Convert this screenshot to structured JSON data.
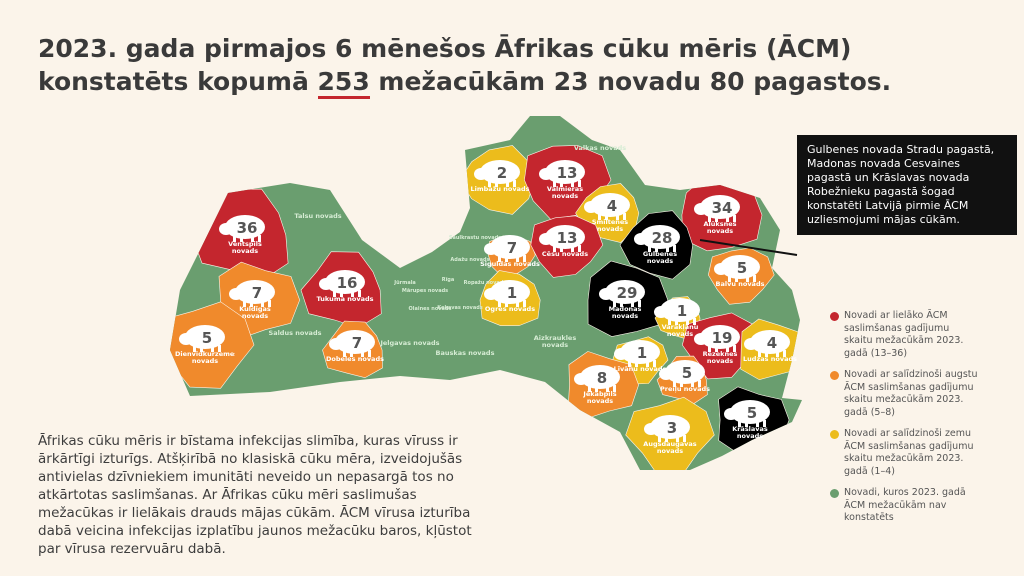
{
  "title": {
    "line1": [
      "2023. gada pirmajos 6 mēnešos ",
      "Āfrikas cūku mēris",
      " (ĀCM)"
    ],
    "line2": [
      "konstatēts kopumā ",
      "253",
      " mežacūkām 23 novadu 80 pagastos."
    ]
  },
  "description": "Āfrikas cūku mēris ir bīstama infekcijas slimība, kuras vīruss ir ārkārtīgi izturīgs. Atšķirībā no klasiskā cūku mēra, izveidojušās antivielas dzīvniekiem imunitāti neveido un nepasargā tos no atkārtotas saslimšanas. Ar Āfrikas cūku mēri saslimušas mežacūkas ir lielākais drauds mājas cūkām. ĀCM vīrusa izturība dabā veicina infekcijas izplatību jaunos mežacūku baros, kļūstot par vīrusa rezervuāru dabā.",
  "callout": "Gulbenes novada Stradu pagastā, Madonas novada Cesvaines pagastā un Krāslavas novada Robežnieku pagastā šogad konstatēti Latvijā pirmie ĀCM uzliesmojumi mājas cūkām.",
  "legend": [
    {
      "label": "Novadi ar lielāko ĀCM saslimšanas gadījumu skaitu mežacūkām 2023. gadā (13–36)",
      "color": "#c4262e"
    },
    {
      "label": "Novadi ar salīdzinoši augstu ĀCM saslimšanas gadījumu skaitu mežacūkām 2023. gadā (5–8)",
      "color": "#f08a2c"
    },
    {
      "label": "Novadi ar salīdzinoši zemu ĀCM saslimšanas gadījumu skaitu mežacūkām 2023. gadā (1–4)",
      "color": "#ecbc1c"
    },
    {
      "label": "Novadi, kuros 2023. gadā ĀCM mežacūkām nav konstatēts",
      "color": "#6a9e6f"
    }
  ],
  "regions": [
    {
      "name": "Ventspils novads",
      "count": 36,
      "color": "#c4262e"
    },
    {
      "name": "Talsu novads",
      "color": "#6a9e6f"
    },
    {
      "name": "Kuldīgas novads",
      "count": 7,
      "color": "#f08a2c"
    },
    {
      "name": "Tukuma novads",
      "count": 16,
      "color": "#c4262e"
    },
    {
      "name": "Dienvidkurzemes novads",
      "count": 5,
      "color": "#f08a2c"
    },
    {
      "name": "Saldus novads",
      "color": "#6a9e6f"
    },
    {
      "name": "Dobeles novads",
      "count": 7,
      "color": "#f08a2c"
    },
    {
      "name": "Jelgavas novads",
      "color": "#6a9e6f"
    },
    {
      "name": "Bauskas novads",
      "color": "#6a9e6f"
    },
    {
      "name": "Jūrmala",
      "color": "#6a9e6f"
    },
    {
      "name": "Mārupes novads",
      "color": "#6a9e6f"
    },
    {
      "name": "Olaines novads",
      "color": "#6a9e6f"
    },
    {
      "name": "Ķekavas novads",
      "color": "#6a9e6f"
    },
    {
      "name": "Rīga",
      "color": "#6a9e6f"
    },
    {
      "name": "Ropažu novads",
      "color": "#6a9e6f"
    },
    {
      "name": "Ādažu novads",
      "color": "#6a9e6f"
    },
    {
      "name": "Saulkrastu novads",
      "color": "#6a9e6f"
    },
    {
      "name": "Siguldas novads",
      "count": 7,
      "color": "#f08a2c"
    },
    {
      "name": "Ogres novads",
      "count": 1,
      "color": "#ecbc1c"
    },
    {
      "name": "Limbažu novads",
      "count": 2,
      "color": "#ecbc1c"
    },
    {
      "name": "Valmieras novads",
      "count": 13,
      "color": "#c4262e"
    },
    {
      "name": "Valkas novads",
      "color": "#6a9e6f"
    },
    {
      "name": "Smiltenes novads",
      "count": 4,
      "color": "#ecbc1c"
    },
    {
      "name": "Cēsu novads",
      "count": 13,
      "color": "#c4262e"
    },
    {
      "name": "Alūksnes novads",
      "count": 34,
      "color": "#c4262e"
    },
    {
      "name": "Gulbenes novads",
      "count": 28,
      "color": "#000000"
    },
    {
      "name": "Balvu novads",
      "count": 5,
      "color": "#f08a2c"
    },
    {
      "name": "Madonas novads",
      "count": 29,
      "color": "#000000"
    },
    {
      "name": "Varakļānu novads",
      "count": 1,
      "color": "#ecbc1c"
    },
    {
      "name": "Rēzeknes novads",
      "count": 19,
      "color": "#c4262e"
    },
    {
      "name": "Ludzas novads",
      "count": 4,
      "color": "#ecbc1c"
    },
    {
      "name": "Aizkraukles novads",
      "color": "#6a9e6f"
    },
    {
      "name": "Līvānu novads",
      "count": 1,
      "color": "#ecbc1c"
    },
    {
      "name": "Jēkabpils novads",
      "count": 8,
      "color": "#f08a2c"
    },
    {
      "name": "Preiļu novads",
      "count": 5,
      "color": "#f08a2c"
    },
    {
      "name": "Augšdaugavas novads",
      "count": 3,
      "color": "#ecbc1c"
    },
    {
      "name": "Krāslavas novads",
      "count": 5,
      "color": "#000000"
    }
  ]
}
